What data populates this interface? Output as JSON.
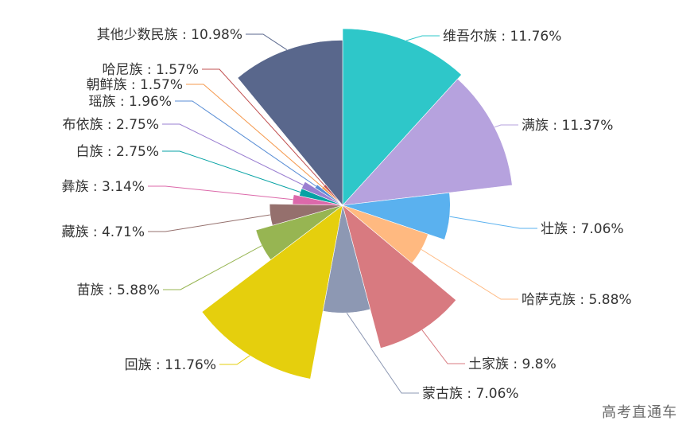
{
  "chart_data": {
    "type": "pie",
    "variant": "rose",
    "title": "",
    "start_angle_deg": 90,
    "clockwise": true,
    "slices": [
      {
        "name": "维吾尔族",
        "value": 11.76,
        "label": "维吾尔族 : 11.76%",
        "color": "#2ec7c9"
      },
      {
        "name": "满族",
        "value": 11.37,
        "label": "满族 : 11.37%",
        "color": "#b6a2de"
      },
      {
        "name": "壮族",
        "value": 7.06,
        "label": "壮族 : 7.06%",
        "color": "#5ab1ef"
      },
      {
        "name": "哈萨克族",
        "value": 5.88,
        "label": "哈萨克族 : 5.88%",
        "color": "#ffb980"
      },
      {
        "name": "土家族",
        "value": 9.8,
        "label": "土家族 : 9.8%",
        "color": "#d87a80"
      },
      {
        "name": "蒙古族",
        "value": 7.06,
        "label": "蒙古族 : 7.06%",
        "color": "#8d98b3"
      },
      {
        "name": "回族",
        "value": 11.76,
        "label": "回族 : 11.76%",
        "color": "#e5cf0d"
      },
      {
        "name": "苗族",
        "value": 5.88,
        "label": "苗族 : 5.88%",
        "color": "#97b552"
      },
      {
        "name": "藏族",
        "value": 4.71,
        "label": "藏族 : 4.71%",
        "color": "#95706d"
      },
      {
        "name": "彝族",
        "value": 3.14,
        "label": "彝族 : 3.14%",
        "color": "#dc69aa"
      },
      {
        "name": "白族",
        "value": 2.75,
        "label": "白族 : 2.75%",
        "color": "#07a2a4"
      },
      {
        "name": "布依族",
        "value": 2.75,
        "label": "布依族 : 2.75%",
        "color": "#9a7fd1"
      },
      {
        "name": "瑶族",
        "value": 1.96,
        "label": "瑶族 : 1.96%",
        "color": "#588dd5"
      },
      {
        "name": "朝鲜族",
        "value": 1.57,
        "label": "朝鲜族 : 1.57%",
        "color": "#f5994e"
      },
      {
        "name": "哈尼族",
        "value": 1.57,
        "label": "哈尼族 : 1.57%",
        "color": "#c05050"
      },
      {
        "name": "其他少数民族",
        "value": 10.98,
        "label": "其他少数民族 : 10.98%",
        "color": "#59678c"
      }
    ]
  },
  "watermark": "高考直通车"
}
